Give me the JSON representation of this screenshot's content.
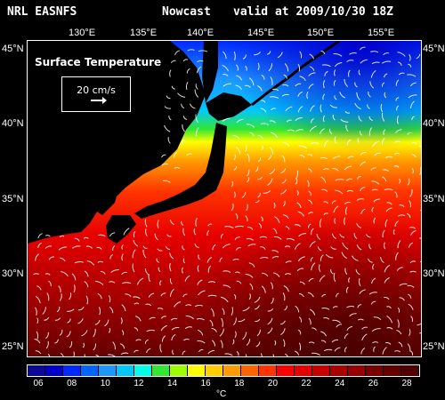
{
  "header": {
    "org": "NRL EASNFS",
    "mode": "Nowcast",
    "valid": "valid at 2009/10/30 18Z"
  },
  "map": {
    "field_label": "Surface Temperature",
    "reference_vector": "20 cm/s",
    "lon_ticks": [
      "130°E",
      "135°E",
      "140°E",
      "145°E",
      "150°E",
      "155°E"
    ],
    "lat_ticks_left": [
      "45°N",
      "40°N",
      "35°N",
      "30°N",
      "25°N"
    ],
    "lat_ticks_right": [
      "45°N",
      "40°N",
      "35°N",
      "30°N",
      "25°N"
    ],
    "land_color": "#000000",
    "vector_color": "#ffffff"
  },
  "colorbar": {
    "labels": [
      "06",
      "08",
      "10",
      "12",
      "14",
      "16",
      "18",
      "20",
      "22",
      "24",
      "26",
      "28"
    ],
    "unit": "°C",
    "colors": [
      "#0a0a96",
      "#0000c8",
      "#0028ff",
      "#0064ff",
      "#1e96ff",
      "#00c8ff",
      "#00ffe6",
      "#32e632",
      "#9bff00",
      "#ffff00",
      "#ffcd00",
      "#ff9b00",
      "#ff6400",
      "#ff3200",
      "#ff0000",
      "#e60000",
      "#c80000",
      "#aa0000",
      "#960000",
      "#780000",
      "#640000",
      "#500000"
    ]
  }
}
